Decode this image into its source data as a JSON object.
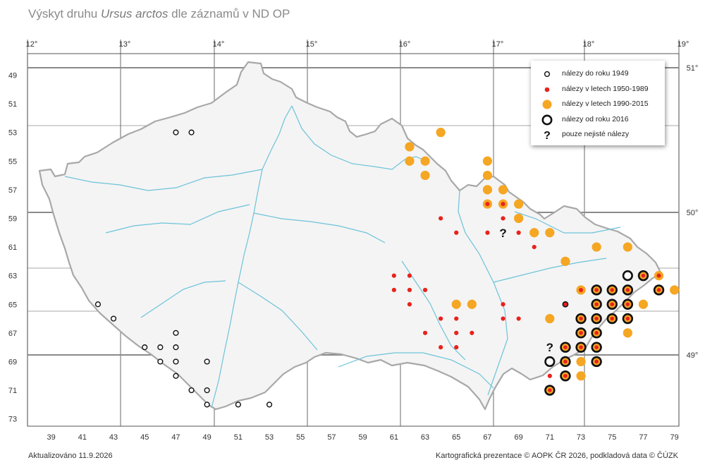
{
  "title": {
    "prefix": "Výskyt druhu ",
    "species": "Ursus arctos",
    "suffix": " dle záznamů v ND OP"
  },
  "footer": {
    "updated": "Aktualizováno 11.9.2026",
    "credit": "Kartografická prezentace © AOPK ČR 2026, podkladová data © ČÚZK"
  },
  "legend": [
    {
      "symbol": "open-circle-small",
      "label": "nálezy do roku 1949"
    },
    {
      "symbol": "red-dot",
      "label": "nálezy v letech 1950-1989"
    },
    {
      "symbol": "orange-dot",
      "label": "nálezy v letech 1990-2015"
    },
    {
      "symbol": "black-ring",
      "label": "nálezy od roku 2016"
    },
    {
      "symbol": "question-mark",
      "label": "pouze nejisté nálezy"
    }
  ],
  "colors": {
    "orange": "#f5a623",
    "red": "#e8221c",
    "black": "#111111",
    "river": "#6cc3d8",
    "border": "#a8a8a8",
    "grid": "#333333",
    "grid_major": "#8a8a8a"
  },
  "axes": {
    "longitude_labels": [
      "12°",
      "13°",
      "14°",
      "15°",
      "16°",
      "17°",
      "18°",
      "19°"
    ],
    "latitude_labels": [
      "51°",
      "50°",
      "49°"
    ],
    "column_labels": [
      "39",
      "41",
      "43",
      "45",
      "47",
      "49",
      "51",
      "53",
      "55",
      "57",
      "59",
      "61",
      "63",
      "65",
      "67",
      "69",
      "71",
      "73",
      "75",
      "77",
      "79"
    ],
    "row_labels": [
      "49",
      "51",
      "53",
      "55",
      "57",
      "59",
      "61",
      "63",
      "65",
      "67",
      "69",
      "71",
      "73"
    ]
  },
  "records": {
    "pre1949": [
      [
        48,
        53
      ],
      [
        47,
        53
      ],
      [
        42,
        65
      ],
      [
        43,
        66
      ],
      [
        47,
        67
      ],
      [
        45,
        68
      ],
      [
        46,
        68
      ],
      [
        47,
        68
      ],
      [
        46,
        69
      ],
      [
        47,
        69
      ],
      [
        49,
        69
      ],
      [
        47,
        70
      ],
      [
        48,
        71
      ],
      [
        49,
        71
      ],
      [
        49,
        72
      ],
      [
        51,
        72
      ],
      [
        53,
        72
      ]
    ],
    "y1950_1989": [
      [
        64,
        59
      ],
      [
        65,
        60
      ],
      [
        67,
        60
      ],
      [
        68,
        59
      ],
      [
        69,
        60
      ],
      [
        70,
        61
      ],
      [
        61,
        63
      ],
      [
        62,
        63
      ],
      [
        61,
        64
      ],
      [
        62,
        64
      ],
      [
        63,
        64
      ],
      [
        62,
        65
      ],
      [
        64,
        66
      ],
      [
        65,
        66
      ],
      [
        63,
        67
      ],
      [
        65,
        67
      ],
      [
        66,
        67
      ],
      [
        64,
        68
      ],
      [
        65,
        68
      ],
      [
        68,
        65
      ],
      [
        68,
        66
      ],
      [
        69,
        66
      ],
      [
        71,
        70
      ]
    ],
    "y1990_2015": [
      [
        64,
        53
      ],
      [
        62,
        54
      ],
      [
        62,
        55
      ],
      [
        63,
        55
      ],
      [
        63,
        56
      ],
      [
        67,
        55
      ],
      [
        67,
        56
      ],
      [
        67,
        57
      ],
      [
        68,
        57
      ],
      [
        69,
        58
      ],
      [
        69,
        59
      ],
      [
        70,
        60
      ],
      [
        71,
        60
      ],
      [
        72,
        62
      ],
      [
        74,
        61
      ],
      [
        76,
        61
      ],
      [
        79,
        64
      ],
      [
        77,
        65
      ],
      [
        76,
        67
      ],
      [
        65,
        65
      ],
      [
        66,
        65
      ],
      [
        71,
        66
      ],
      [
        73,
        69
      ],
      [
        73,
        70
      ]
    ],
    "y1990_2015_with_red": [
      [
        67,
        58
      ],
      [
        68,
        58
      ],
      [
        78,
        63
      ],
      [
        73,
        64
      ]
    ],
    "since2016_on_orange": [
      [
        77,
        63
      ],
      [
        74,
        64
      ],
      [
        75,
        64
      ],
      [
        76,
        64
      ],
      [
        78,
        64
      ],
      [
        74,
        65
      ],
      [
        75,
        65
      ],
      [
        76,
        65
      ],
      [
        73,
        66
      ],
      [
        74,
        66
      ],
      [
        75,
        66
      ],
      [
        76,
        66
      ],
      [
        73,
        67
      ],
      [
        74,
        67
      ],
      [
        72,
        68
      ],
      [
        73,
        68
      ],
      [
        74,
        68
      ],
      [
        72,
        69
      ],
      [
        74,
        69
      ],
      [
        72,
        70
      ],
      [
        71,
        71
      ]
    ],
    "since2016_only": [
      [
        76,
        63
      ],
      [
        71,
        69
      ]
    ],
    "since2016_red_center": [
      [
        72,
        65
      ]
    ],
    "uncertain": [
      [
        68,
        60
      ],
      [
        71,
        68
      ]
    ]
  }
}
